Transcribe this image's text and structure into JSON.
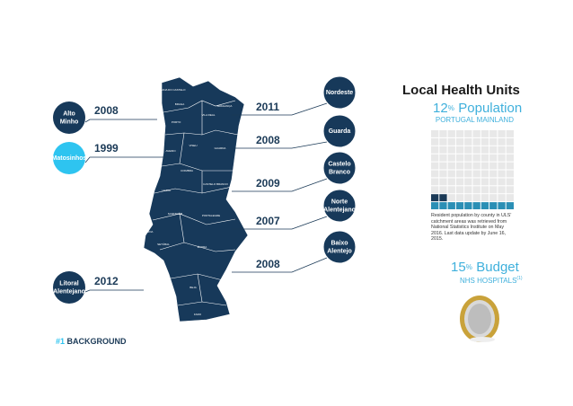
{
  "slide": {
    "footer": {
      "number": "#1",
      "label": "BACKGROUND"
    }
  },
  "units": {
    "left": [
      {
        "name": "Alto Minho",
        "year": "2008"
      },
      {
        "name": "Matosinhos",
        "year": "1999"
      },
      {
        "name": "Litoral Alentejano",
        "year": "2012"
      }
    ],
    "right": [
      {
        "name": "Nordeste",
        "year": "2011"
      },
      {
        "name": "Guarda",
        "year": "2008"
      },
      {
        "name": "Castelo Branco",
        "year": "2009"
      },
      {
        "name": "Norte Alentejano",
        "year": "2007"
      },
      {
        "name": "Baixo Alentejo",
        "year": "2008"
      }
    ]
  },
  "map": {
    "districts": [
      "VIANA DO CASTELO",
      "BRAGA",
      "VILA REAL",
      "BRAGANÇA",
      "PORTO",
      "VISEU",
      "GUARDA",
      "AVEIRO",
      "COIMBRA",
      "CASTELO BRANCO",
      "LEIRIA",
      "SANTARÉM",
      "PORTALEGRE",
      "LISBOA",
      "SETÚBAL",
      "ÉVORA",
      "BEJA",
      "FARO"
    ]
  },
  "panel": {
    "title": "Local Health Units",
    "population": {
      "value": 12,
      "unit": "%",
      "label": "Population",
      "scope": "PORTUGAL MAINLAND"
    },
    "note": "Resident population by county in ULS' catchment areas was retrieved from National Statistics Institute on May 2016. Last data update by June 16, 2015.",
    "budget": {
      "value": 15,
      "unit": "%",
      "label": "Budget",
      "scope": "NHS HOSPITALS",
      "footnote": "(1)"
    }
  }
}
